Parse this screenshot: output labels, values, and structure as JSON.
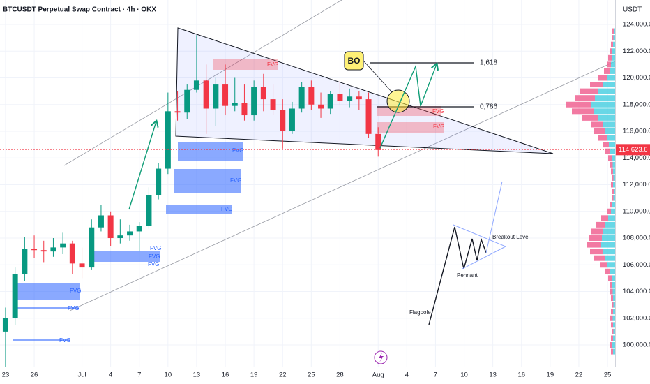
{
  "header": {
    "title": "BTCUSDT Perpetual Swap Contract · 4h · OKX",
    "currency": "USDT"
  },
  "chart_data": {
    "type": "candlestick",
    "x": [
      0,
      1,
      2,
      3,
      4,
      5,
      6,
      7,
      8,
      9,
      10,
      11,
      12,
      13,
      14,
      15,
      16,
      17,
      18,
      19,
      20,
      21,
      22,
      23,
      24,
      25,
      26,
      27,
      28,
      29,
      30,
      31,
      32,
      33,
      34,
      35,
      36,
      37,
      38,
      39
    ],
    "open": [
      101000,
      102000,
      105300,
      107200,
      107100,
      107000,
      107300,
      107600,
      106100,
      105800,
      108800,
      109700,
      108000,
      108200,
      108500,
      108900,
      111200,
      113200,
      117500,
      117400,
      119100,
      119800,
      117700,
      119500,
      117900,
      118100,
      117200,
      119300,
      118400,
      117600,
      116000,
      117700,
      119300,
      118000,
      117700,
      118800,
      118300,
      118600,
      118400,
      115800
    ],
    "high": [
      102800,
      105800,
      108100,
      108200,
      107800,
      108000,
      108400,
      107800,
      107300,
      109400,
      110500,
      110000,
      109400,
      109000,
      109200,
      111800,
      113600,
      118900,
      119000,
      119500,
      123200,
      121000,
      120000,
      121000,
      120000,
      119500,
      119800,
      120300,
      119500,
      118400,
      118200,
      119700,
      119800,
      118900,
      119000,
      119800,
      119200,
      119000,
      118900,
      116300
    ],
    "low": [
      98300,
      101500,
      104800,
      106500,
      106200,
      106600,
      106800,
      105300,
      105000,
      105600,
      108500,
      107400,
      107600,
      107800,
      107000,
      108700,
      110900,
      112800,
      116800,
      116900,
      118900,
      115800,
      116400,
      117200,
      117500,
      116800,
      116800,
      117500,
      117200,
      114700,
      115800,
      117400,
      117600,
      117000,
      117300,
      118000,
      117800,
      117600,
      115500,
      114100
    ],
    "close": [
      102000,
      105300,
      107200,
      107100,
      107000,
      107300,
      107600,
      106100,
      105800,
      108800,
      109700,
      108000,
      108200,
      108500,
      108900,
      111200,
      113200,
      117500,
      117400,
      119100,
      119800,
      117700,
      119500,
      117900,
      118100,
      117200,
      119300,
      118400,
      117600,
      116000,
      117700,
      119300,
      118000,
      117700,
      118800,
      118300,
      118600,
      118400,
      115800,
      114600
    ],
    "up_color": "#089981",
    "down_color": "#f23645",
    "xlim": [
      -0.58,
      63.8
    ],
    "ylim": [
      98380,
      125830
    ],
    "xticks": [
      {
        "value": 0,
        "label": "23"
      },
      {
        "value": 3,
        "label": "26"
      },
      {
        "value": 8,
        "label": "Jul"
      },
      {
        "value": 11,
        "label": "4"
      },
      {
        "value": 14,
        "label": "7"
      },
      {
        "value": 17,
        "label": "10"
      },
      {
        "value": 20,
        "label": "13"
      },
      {
        "value": 23,
        "label": "16"
      },
      {
        "value": 26,
        "label": "19"
      },
      {
        "value": 29,
        "label": "22"
      },
      {
        "value": 32,
        "label": "25"
      },
      {
        "value": 35,
        "label": "28"
      },
      {
        "value": 39,
        "label": "Aug"
      },
      {
        "value": 42,
        "label": "4"
      },
      {
        "value": 45,
        "label": "7"
      },
      {
        "value": 48,
        "label": "10"
      },
      {
        "value": 51,
        "label": "13"
      },
      {
        "value": 54,
        "label": "16"
      },
      {
        "value": 57,
        "label": "19"
      },
      {
        "value": 60,
        "label": "22"
      },
      {
        "value": 63,
        "label": "25"
      }
    ],
    "yticks": [
      {
        "value": 100000,
        "label": "100,000.0"
      },
      {
        "value": 102000,
        "label": "102,000.0"
      },
      {
        "value": 104000,
        "label": "104,000.0"
      },
      {
        "value": 106000,
        "label": "106,000.0"
      },
      {
        "value": 108000,
        "label": "108,000.0"
      },
      {
        "value": 110000,
        "label": "110,000.0"
      },
      {
        "value": 112000,
        "label": "112,000.0"
      },
      {
        "value": 114000,
        "label": "114,000.0"
      },
      {
        "value": 116000,
        "label": "116,000.0"
      },
      {
        "value": 118000,
        "label": "118,000.0"
      },
      {
        "value": 120000,
        "label": "120,000.0"
      },
      {
        "value": 122000,
        "label": "122,000.0"
      },
      {
        "value": 124000,
        "label": "124,000.0"
      }
    ],
    "grid": true,
    "last_price": {
      "value": 114623.6,
      "label": "114,623.6"
    },
    "volume_profile": {
      "prices": [
        99500,
        100000,
        100500,
        101000,
        101500,
        102000,
        102500,
        103000,
        103500,
        104000,
        104500,
        105000,
        105500,
        106000,
        106500,
        107000,
        107500,
        108000,
        108500,
        109000,
        109500,
        110000,
        110500,
        111000,
        111500,
        112000,
        112500,
        113000,
        113500,
        114000,
        114500,
        115000,
        115500,
        116000,
        116500,
        117000,
        117500,
        118000,
        118500,
        119000,
        119500,
        120000,
        120500,
        121000,
        121500,
        122000,
        122500,
        123000,
        123500
      ],
      "values": [
        6,
        8,
        6,
        5,
        6,
        7,
        6,
        5,
        6,
        7,
        8,
        10,
        14,
        22,
        30,
        36,
        40,
        38,
        34,
        28,
        20,
        12,
        8,
        5,
        4,
        6,
        5,
        6,
        7,
        10,
        14,
        18,
        24,
        30,
        34,
        48,
        62,
        70,
        58,
        50,
        36,
        24,
        16,
        12,
        10,
        8,
        6,
        5,
        4
      ]
    }
  },
  "annotations": {
    "fvg": [
      "FVG",
      "FVG",
      "FVG",
      "FVG",
      "FVG",
      "FVG",
      "FVG",
      "FVG",
      "FVG",
      "FVG",
      "FVG",
      "FVG"
    ],
    "breakout_tag": "BO",
    "fib_levels": [
      "1,618",
      "0,786"
    ],
    "pennant_labels": {
      "flagpole": "Flagpole",
      "pennant": "Pennant",
      "breakout": "Breakout Level"
    }
  }
}
